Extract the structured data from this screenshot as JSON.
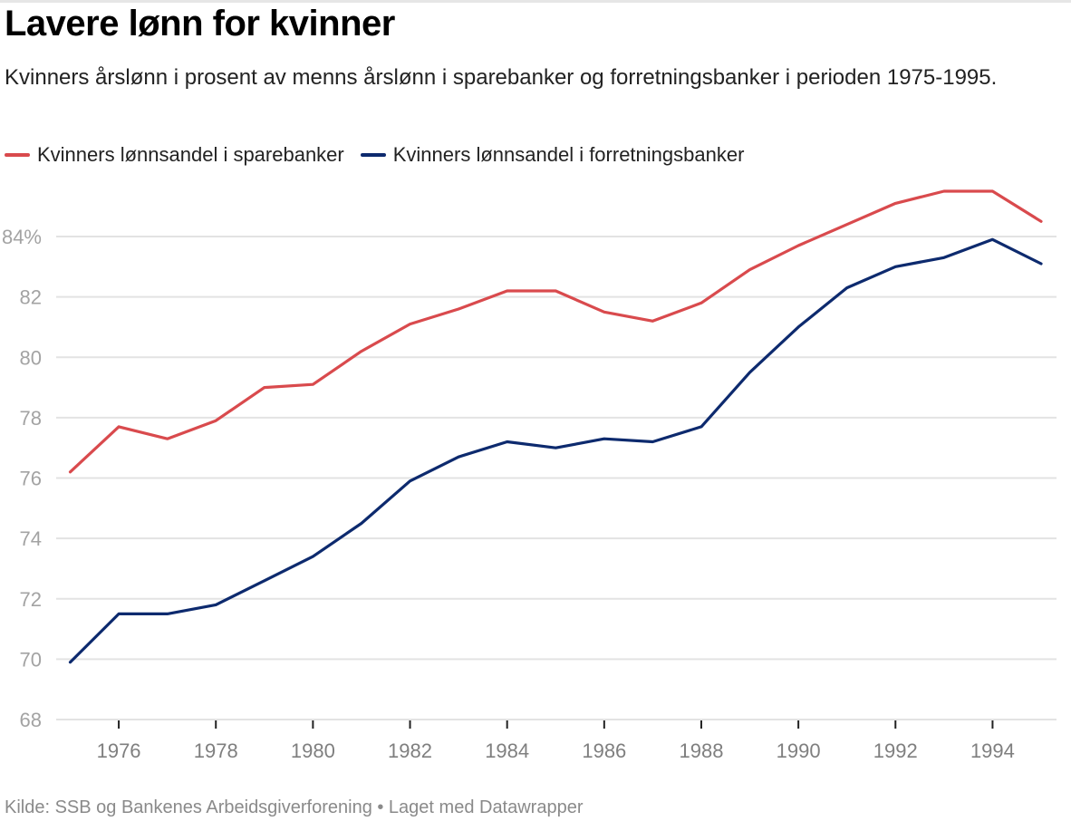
{
  "header": {
    "title": "Lavere lønn for kvinner",
    "subtitle": "Kvinners årslønn i prosent av menns årslønn i sparebanker og forretningsbanker i perioden 1975-1995."
  },
  "legend": [
    {
      "label": "Kvinners lønnsandel i sparebanker",
      "color": "#d94a4d"
    },
    {
      "label": "Kvinners lønnsandel i forretningsbanker",
      "color": "#0d2a6e"
    }
  ],
  "footer": {
    "source": "Kilde: SSB og Bankenes Arbeidsgiverforening • Laget med Datawrapper"
  },
  "chart_data": {
    "type": "line",
    "title": "Lavere lønn for kvinner",
    "subtitle": "Kvinners årslønn i prosent av menns årslønn i sparebanker og forretningsbanker i perioden 1975-1995.",
    "xlabel": "",
    "ylabel": "",
    "x": [
      1975,
      1976,
      1977,
      1978,
      1979,
      1980,
      1981,
      1982,
      1983,
      1984,
      1985,
      1986,
      1987,
      1988,
      1989,
      1990,
      1991,
      1992,
      1993,
      1994,
      1995
    ],
    "xlim": [
      1975,
      1995
    ],
    "ylim": [
      68,
      86
    ],
    "y_ticks": [
      68,
      70,
      72,
      74,
      76,
      78,
      80,
      82,
      84
    ],
    "y_tick_labels": [
      "68",
      "70",
      "72",
      "74",
      "76",
      "78",
      "80",
      "82",
      "84%"
    ],
    "x_ticks": [
      1976,
      1978,
      1980,
      1982,
      1984,
      1986,
      1988,
      1990,
      1992,
      1994
    ],
    "x_tick_labels": [
      "1976",
      "1978",
      "1980",
      "1982",
      "1984",
      "1986",
      "1988",
      "1990",
      "1992",
      "1994"
    ],
    "grid": true,
    "legend_position": "top-left",
    "series": [
      {
        "name": "Kvinners lønnsandel i sparebanker",
        "color": "#d94a4d",
        "values": [
          76.2,
          77.7,
          77.3,
          77.9,
          79.0,
          79.1,
          80.2,
          81.1,
          81.6,
          82.2,
          82.2,
          81.5,
          81.2,
          81.8,
          82.9,
          83.7,
          84.4,
          85.1,
          85.5,
          85.5,
          84.5
        ]
      },
      {
        "name": "Kvinners lønnsandel i forretningsbanker",
        "color": "#0d2a6e",
        "values": [
          69.9,
          71.5,
          71.5,
          71.8,
          72.6,
          73.4,
          74.5,
          75.9,
          76.7,
          77.2,
          77.0,
          77.3,
          77.2,
          77.7,
          79.5,
          81.0,
          82.3,
          83.0,
          83.3,
          83.9,
          83.1
        ]
      }
    ]
  }
}
